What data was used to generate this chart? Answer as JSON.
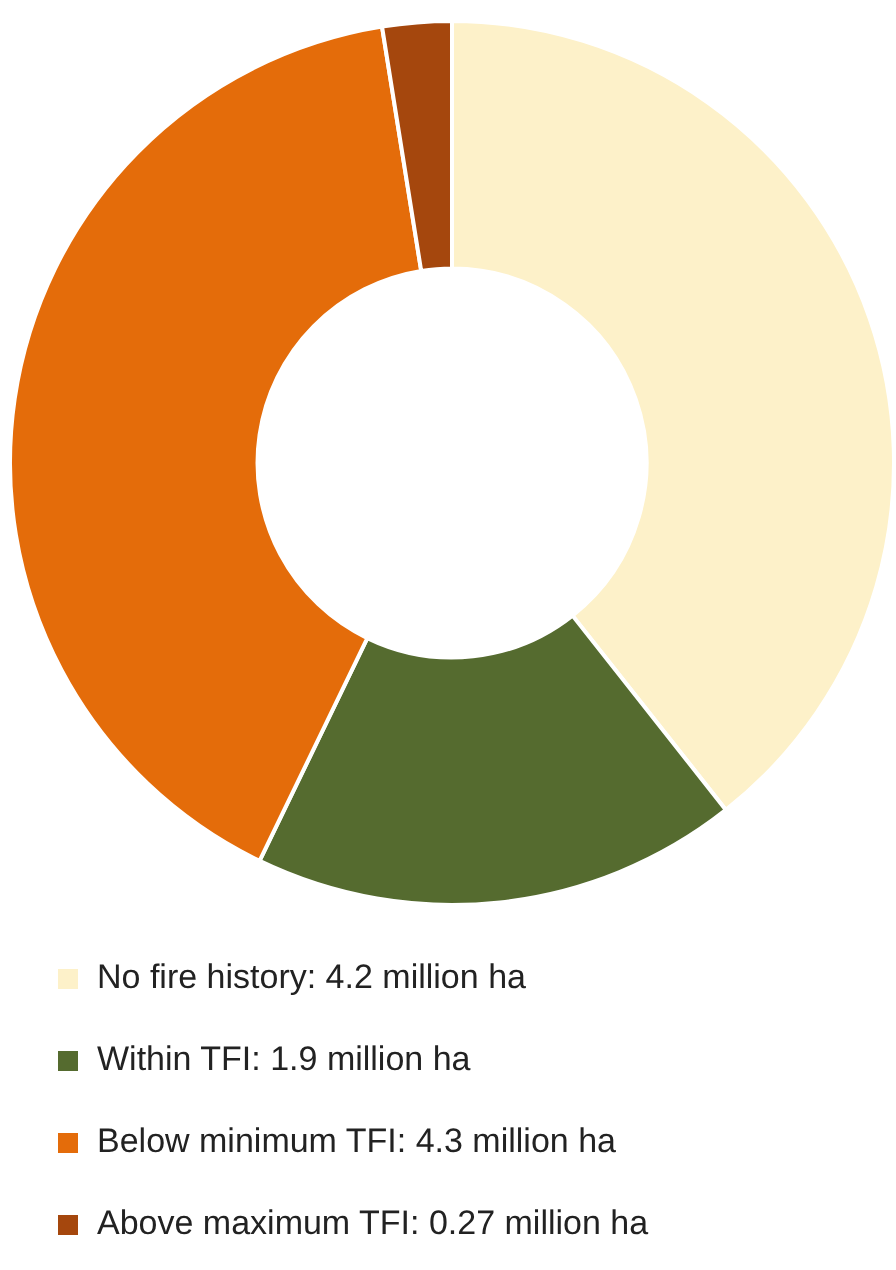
{
  "chart_data": {
    "type": "donut",
    "categories": [
      "No fire history: 4.2 million ha",
      "Within TFI: 1.9 million ha",
      "Below minimum TFI: 4.3 million ha",
      "Above maximum TFI: 0.27 million ha"
    ],
    "values": [
      4.2,
      1.9,
      4.3,
      0.27
    ],
    "colors": [
      "#fdf1c9",
      "#556b2f",
      "#e46c0a",
      "#a5470d"
    ],
    "legend": "bottom"
  }
}
